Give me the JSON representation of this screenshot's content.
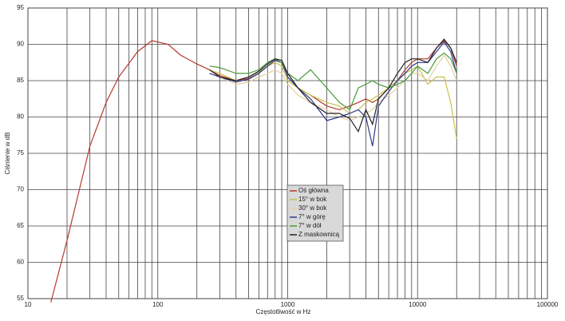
{
  "chart_data": {
    "type": "line",
    "xlabel": "Częstotliwość w Hz",
    "ylabel": "Ciśnienie w dB",
    "x": [
      15,
      20,
      30,
      40,
      50,
      70,
      90,
      120,
      150,
      200,
      250,
      300,
      400,
      500,
      600,
      700,
      800,
      900,
      1000,
      1200,
      1500,
      2000,
      2500,
      3000,
      3500,
      4000,
      4500,
      5000,
      6000,
      7000,
      8000,
      9000,
      10000,
      12000,
      14000,
      16000,
      18000,
      20000
    ],
    "series": [
      {
        "name": "Oś główna",
        "color": "#b5392c",
        "values": [
          54.5,
          63,
          76,
          82,
          85.5,
          89,
          90.5,
          90,
          88.5,
          87.3,
          86.5,
          85.7,
          85,
          85.3,
          86,
          87,
          87.8,
          87.5,
          85.5,
          84,
          83,
          81.5,
          81,
          81.5,
          82,
          82.5,
          82,
          82.5,
          84,
          85,
          86.5,
          87.5,
          88,
          88,
          89.5,
          90.5,
          89.5,
          87
        ]
      },
      {
        "name": "15° w bok",
        "color": "#c9c24a",
        "values": [
          null,
          null,
          null,
          null,
          null,
          null,
          null,
          null,
          null,
          null,
          86.5,
          86,
          85,
          85.5,
          86.2,
          87,
          87.5,
          87,
          85,
          84,
          83,
          82,
          81.5,
          80.5,
          81,
          82,
          82.5,
          83,
          84,
          85,
          86,
          86.5,
          87,
          84.5,
          85.5,
          85.5,
          82,
          77
        ]
      },
      {
        "name": "30° w bok",
        "color": "#e6cfa0",
        "values": [
          null,
          null,
          null,
          null,
          null,
          null,
          null,
          null,
          null,
          null,
          86.5,
          85.5,
          84.5,
          84.8,
          85.5,
          86,
          86.5,
          86,
          84.5,
          83,
          82,
          81,
          80,
          79.5,
          80,
          80.5,
          81,
          82,
          83,
          84,
          85,
          86,
          86,
          85,
          87,
          88.5,
          87,
          85
        ]
      },
      {
        "name": "7° w górę",
        "color": "#2a3a8c",
        "values": [
          null,
          null,
          null,
          null,
          null,
          null,
          null,
          null,
          null,
          null,
          86,
          85.5,
          84.8,
          85.2,
          86,
          87,
          87.8,
          87.5,
          85.5,
          84,
          82.5,
          79.5,
          80,
          80.5,
          81,
          80,
          76,
          81.5,
          83.5,
          85,
          86,
          87,
          87.5,
          87.5,
          89,
          90.3,
          89,
          86
        ]
      },
      {
        "name": "7° w dół",
        "color": "#4a9a3a",
        "values": [
          null,
          null,
          null,
          null,
          null,
          null,
          null,
          null,
          null,
          null,
          87,
          86.8,
          86,
          86,
          86.5,
          87.5,
          88,
          87.5,
          86,
          85,
          86.5,
          84,
          82,
          81,
          84,
          84.5,
          85,
          84.5,
          84,
          84.5,
          85,
          86,
          87,
          86,
          88,
          88.8,
          88,
          86
        ]
      },
      {
        "name": "Z maskownicą",
        "color": "#222222",
        "values": [
          null,
          null,
          null,
          null,
          null,
          null,
          null,
          null,
          null,
          null,
          86.5,
          85.5,
          85,
          85.5,
          86.3,
          87.3,
          88,
          87.8,
          86,
          84,
          82,
          80.5,
          80.5,
          79.8,
          78,
          81,
          79,
          82.5,
          84,
          86,
          87.5,
          88,
          88,
          87.5,
          89.5,
          90.7,
          89.5,
          87.5
        ]
      }
    ],
    "xlim": [
      10,
      100000
    ],
    "xticks": [
      10,
      100,
      1000,
      10000,
      100000
    ],
    "xscale": "log",
    "ylim": [
      55,
      95
    ],
    "yticks": [
      55,
      60,
      65,
      70,
      75,
      80,
      85,
      90,
      95
    ],
    "grid": true,
    "legend": "center"
  }
}
